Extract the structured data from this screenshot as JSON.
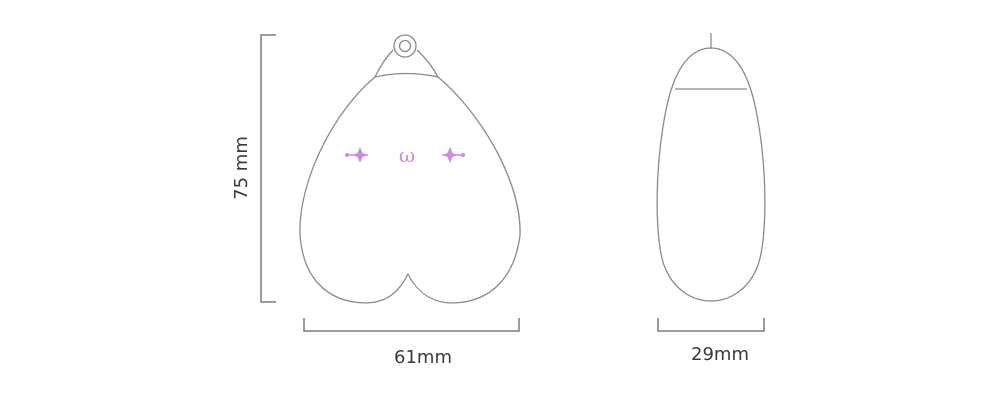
{
  "dimensions": {
    "height_label": "75 mm",
    "front_width_label": "61mm",
    "side_width_label": "29mm"
  },
  "logo": {
    "mark": "ω",
    "icon": "logo-mark-icon"
  },
  "colors": {
    "outline": "#8a8a8a",
    "dimension_line": "#7a7a7a",
    "text": "#3a3a3a",
    "accent": "#c98ee0"
  }
}
